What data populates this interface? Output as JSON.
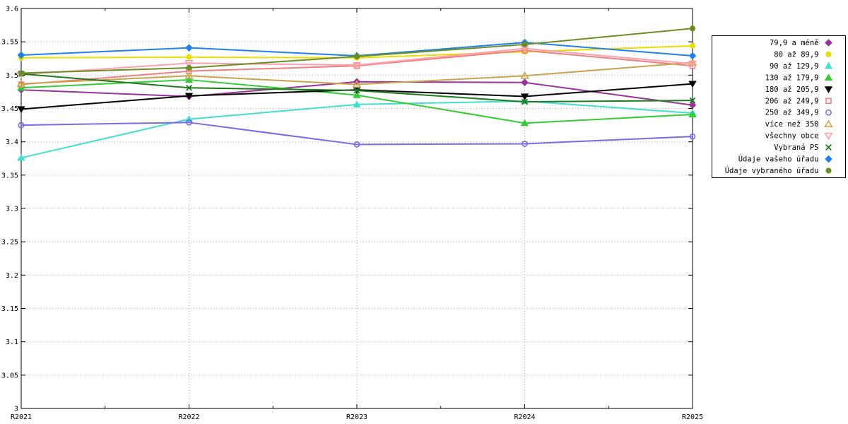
{
  "chart_data": {
    "type": "line",
    "title": "",
    "xlabel": "",
    "ylabel": "",
    "x_categories": [
      "R2021",
      "R2022",
      "R2023",
      "R2024",
      "R2025"
    ],
    "ylim": [
      3.0,
      3.6
    ],
    "y_tick_step": 0.05,
    "y_tick_labels": [
      "3",
      "3.05",
      "3.1",
      "3.15",
      "3.2",
      "3.25",
      "3.3",
      "3.35",
      "3.4",
      "3.45",
      "3.5",
      "3.55",
      "3.6"
    ],
    "grid": true,
    "grid_style": "dotted",
    "legend_position": "right-outside",
    "series": [
      {
        "name": "79,9 a méně",
        "color": "#993399",
        "marker": "diamond",
        "filled": true,
        "values": [
          3.478,
          3.468,
          3.49,
          3.489,
          3.455
        ]
      },
      {
        "name": "80 až 89,9",
        "color": "#e8df00",
        "marker": "circle",
        "filled": true,
        "values": [
          3.526,
          3.527,
          3.526,
          3.535,
          3.544
        ]
      },
      {
        "name": "90 až 129,9",
        "color": "#40e0d0",
        "marker": "triangle-up",
        "filled": true,
        "values": [
          3.376,
          3.434,
          3.456,
          3.461,
          3.443
        ]
      },
      {
        "name": "130 až 179,9",
        "color": "#33cc33",
        "marker": "triangle-up",
        "filled": true,
        "values": [
          3.481,
          3.493,
          3.47,
          3.428,
          3.441
        ]
      },
      {
        "name": "180 až 205,9",
        "color": "#000000",
        "marker": "triangle-down",
        "filled": true,
        "values": [
          3.449,
          3.469,
          3.478,
          3.468,
          3.487
        ]
      },
      {
        "name": "206 až 249,9",
        "color": "#f08080",
        "marker": "square",
        "filled": false,
        "values": [
          3.486,
          3.506,
          3.514,
          3.537,
          3.514
        ]
      },
      {
        "name": "250 až 349,9",
        "color": "#7b68ee",
        "marker": "circle",
        "filled": false,
        "values": [
          3.425,
          3.429,
          3.396,
          3.397,
          3.408
        ]
      },
      {
        "name": "více než 350",
        "color": "#c9a44d",
        "marker": "triangle-up",
        "filled": false,
        "values": [
          3.487,
          3.499,
          3.486,
          3.499,
          3.519
        ]
      },
      {
        "name": "všechny obce",
        "color": "#ff9fb0",
        "marker": "triangle-down",
        "filled": false,
        "values": [
          3.501,
          3.518,
          3.515,
          3.54,
          3.517
        ]
      },
      {
        "name": "Vybraná PS",
        "color": "#1e7b1e",
        "marker": "cross",
        "filled": false,
        "values": [
          3.502,
          3.481,
          3.477,
          3.46,
          3.462
        ]
      },
      {
        "name": "Údaje vašeho úřadu",
        "color": "#2080f0",
        "marker": "diamond",
        "filled": true,
        "values": [
          3.53,
          3.541,
          3.529,
          3.549,
          3.529
        ]
      },
      {
        "name": "Údaje vybraného úřadu",
        "color": "#6b8e23",
        "marker": "circle",
        "filled": true,
        "values": [
          3.503,
          3.511,
          3.528,
          3.546,
          3.57
        ]
      }
    ]
  },
  "colors": {
    "background": "#ffffff",
    "axis": "#000000",
    "grid": "#b0b0b0"
  }
}
